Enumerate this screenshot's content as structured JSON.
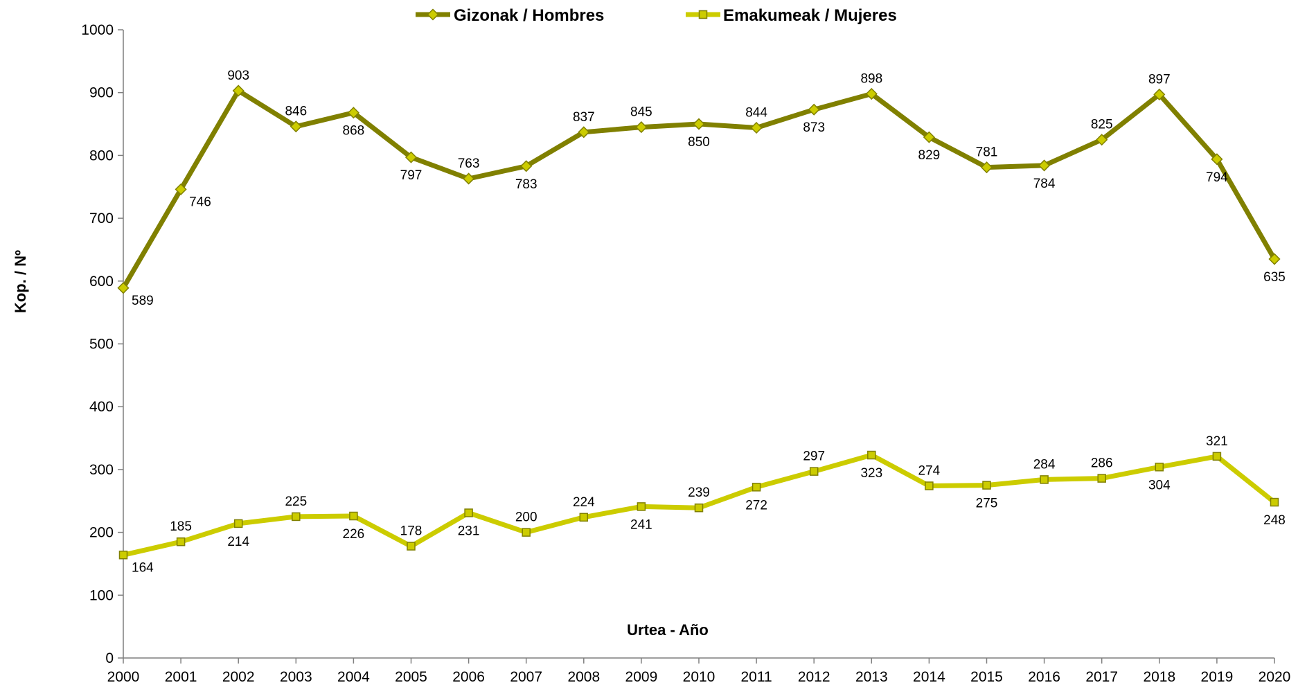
{
  "chart_data": {
    "type": "line",
    "title": "",
    "xlabel": "Urtea - Año",
    "ylabel": "Kop. / Nº",
    "ylim": [
      0,
      1000
    ],
    "yticks": [
      0,
      100,
      200,
      300,
      400,
      500,
      600,
      700,
      800,
      900,
      1000
    ],
    "grid": false,
    "legend_position": "top-center",
    "categories": [
      "2000",
      "2001",
      "2002",
      "2003",
      "2004",
      "2005",
      "2006",
      "2007",
      "2008",
      "2009",
      "2010",
      "2011",
      "2012",
      "2013",
      "2014",
      "2015",
      "2016",
      "2017",
      "2018",
      "2019",
      "2020"
    ],
    "series": [
      {
        "name": "Gizonak / Hombres",
        "color": "#808000",
        "marker": "diamond",
        "values": [
          589,
          746,
          903,
          846,
          868,
          797,
          763,
          783,
          837,
          845,
          850,
          844,
          873,
          898,
          829,
          781,
          784,
          825,
          897,
          794,
          635
        ]
      },
      {
        "name": "Emakumeak / Mujeres",
        "color": "#CCCC00",
        "marker": "square",
        "values": [
          164,
          185,
          214,
          225,
          226,
          178,
          231,
          200,
          224,
          241,
          239,
          272,
          297,
          323,
          274,
          275,
          284,
          286,
          304,
          321,
          248
        ]
      }
    ]
  }
}
